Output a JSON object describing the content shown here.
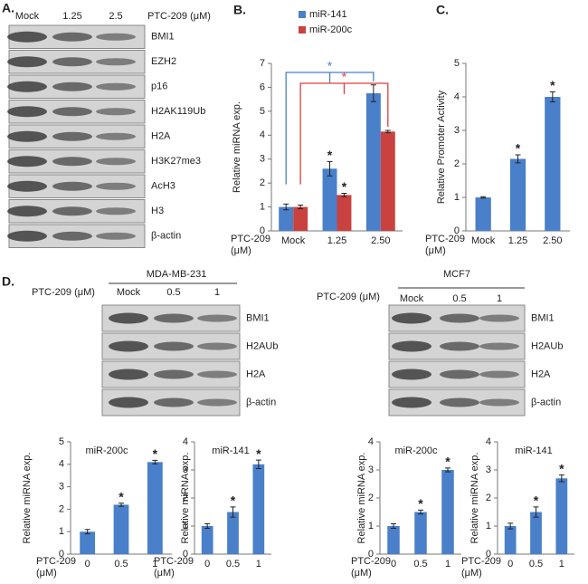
{
  "panel_labels": [
    "A.",
    "B.",
    "C.",
    "D."
  ],
  "blots": [
    {
      "treatment": "PTC-209 (μM)",
      "lanes": [
        "Mock",
        "1.25",
        "2.5"
      ],
      "bands": [
        "BMI1",
        "EZH2",
        "p16",
        "H2AK119Ub",
        "H2A",
        "H3K27me3",
        "AcH3",
        "H3",
        "β-actin"
      ]
    },
    {
      "cell_line": "MDA-MB-231",
      "treatment": "PTC-209 (μM)",
      "lanes": [
        "Mock",
        "0.5",
        "1"
      ],
      "bands": [
        "BMI1",
        "H2AUb",
        "H2A",
        "β-actin"
      ]
    },
    {
      "cell_line": "MCF7",
      "treatment": "PTC-209 (μM)",
      "lanes": [
        "Mock",
        "0.5",
        "1"
      ],
      "bands": [
        "BMI1",
        "H2AUb",
        "H2A",
        "β-actin"
      ]
    }
  ],
  "chart_data": [
    {
      "type": "bar",
      "y_label": "Relative miRNA exp.",
      "x_label": [
        "PTC-209",
        "(μM)"
      ],
      "categories": [
        "Mock",
        "1.25",
        "2.50"
      ],
      "series": [
        {
          "name": "miR-141",
          "color": "#4a7fc9",
          "values": [
            1,
            2.6,
            5.75
          ],
          "errors": [
            0.12,
            0.3,
            0.35
          ],
          "significance": [
            null,
            "*",
            null
          ]
        },
        {
          "name": "miR-200c",
          "color": "#c9423f",
          "values": [
            1,
            1.5,
            4.15
          ],
          "errors": [
            0.08,
            0.07,
            0.05
          ],
          "significance": [
            null,
            "*",
            null
          ]
        }
      ],
      "brackets": [
        {
          "label": "*",
          "color": "#4a7fc9"
        },
        {
          "label": "*",
          "color": "#d9413c"
        }
      ],
      "ylim": [
        0,
        7
      ],
      "yticks": [
        0,
        1,
        2,
        3,
        4,
        5,
        6,
        7
      ]
    },
    {
      "type": "bar",
      "y_label": "Relative Promoter Activity",
      "x_label": [
        "PTC-209",
        "(μM)"
      ],
      "categories": [
        "Mock",
        "1.25",
        "2.50"
      ],
      "series": [
        {
          "color": "#4a7fc9",
          "values": [
            1,
            2.15,
            4
          ],
          "errors": [
            0.02,
            0.12,
            0.15
          ],
          "significance": [
            null,
            "*",
            "*"
          ]
        }
      ],
      "ylim": [
        0,
        5
      ],
      "yticks": [
        0,
        1,
        2,
        3,
        4,
        5
      ]
    },
    {
      "type": "bar",
      "title": "miR-200c",
      "y_label": "Relative miRNA exp.",
      "x_label": [
        "PTC-209",
        "(μM)"
      ],
      "categories": [
        "0",
        "0.5",
        "1"
      ],
      "series": [
        {
          "color": "#4a7fc9",
          "values": [
            1,
            2.2,
            4.1
          ],
          "errors": [
            0.1,
            0.07,
            0.08
          ],
          "significance": [
            null,
            "*",
            "*"
          ]
        }
      ],
      "ylim": [
        0,
        5
      ],
      "yticks": [
        0,
        1,
        2,
        3,
        4,
        5
      ]
    },
    {
      "type": "bar",
      "title": "miR-141",
      "y_label": "Relative miRNA exp.",
      "x_label": [
        "PTC-209",
        "(μM)"
      ],
      "categories": [
        "0",
        "0.5",
        "1"
      ],
      "series": [
        {
          "color": "#4a7fc9",
          "values": [
            1,
            1.5,
            3.2
          ],
          "errors": [
            0.08,
            0.18,
            0.15
          ],
          "significance": [
            null,
            "*",
            "*"
          ]
        }
      ],
      "ylim": [
        0,
        4
      ],
      "yticks": [
        0,
        1,
        2,
        3,
        4
      ]
    },
    {
      "type": "bar",
      "title": "miR-200c",
      "y_label": "Relative miRNA exp.",
      "x_label": [
        "PTC-209",
        "(μM)"
      ],
      "categories": [
        "0",
        "0.5",
        "1"
      ],
      "series": [
        {
          "color": "#4a7fc9",
          "values": [
            1,
            1.5,
            3.0
          ],
          "errors": [
            0.08,
            0.07,
            0.07
          ],
          "significance": [
            null,
            "*",
            "*"
          ]
        }
      ],
      "ylim": [
        0,
        4
      ],
      "yticks": [
        0,
        1,
        2,
        3,
        4
      ]
    },
    {
      "type": "bar",
      "title": "miR-141",
      "y_label": "Relative miRNA exp.",
      "x_label": [
        "PTC-209",
        "(μM)"
      ],
      "categories": [
        "0",
        "0.5",
        "1"
      ],
      "series": [
        {
          "color": "#4a7fc9",
          "values": [
            1,
            1.5,
            2.7
          ],
          "errors": [
            0.1,
            0.18,
            0.12
          ],
          "significance": [
            null,
            "*",
            "*"
          ]
        }
      ],
      "ylim": [
        0,
        4
      ],
      "yticks": [
        0,
        1,
        2,
        3,
        4
      ]
    }
  ]
}
